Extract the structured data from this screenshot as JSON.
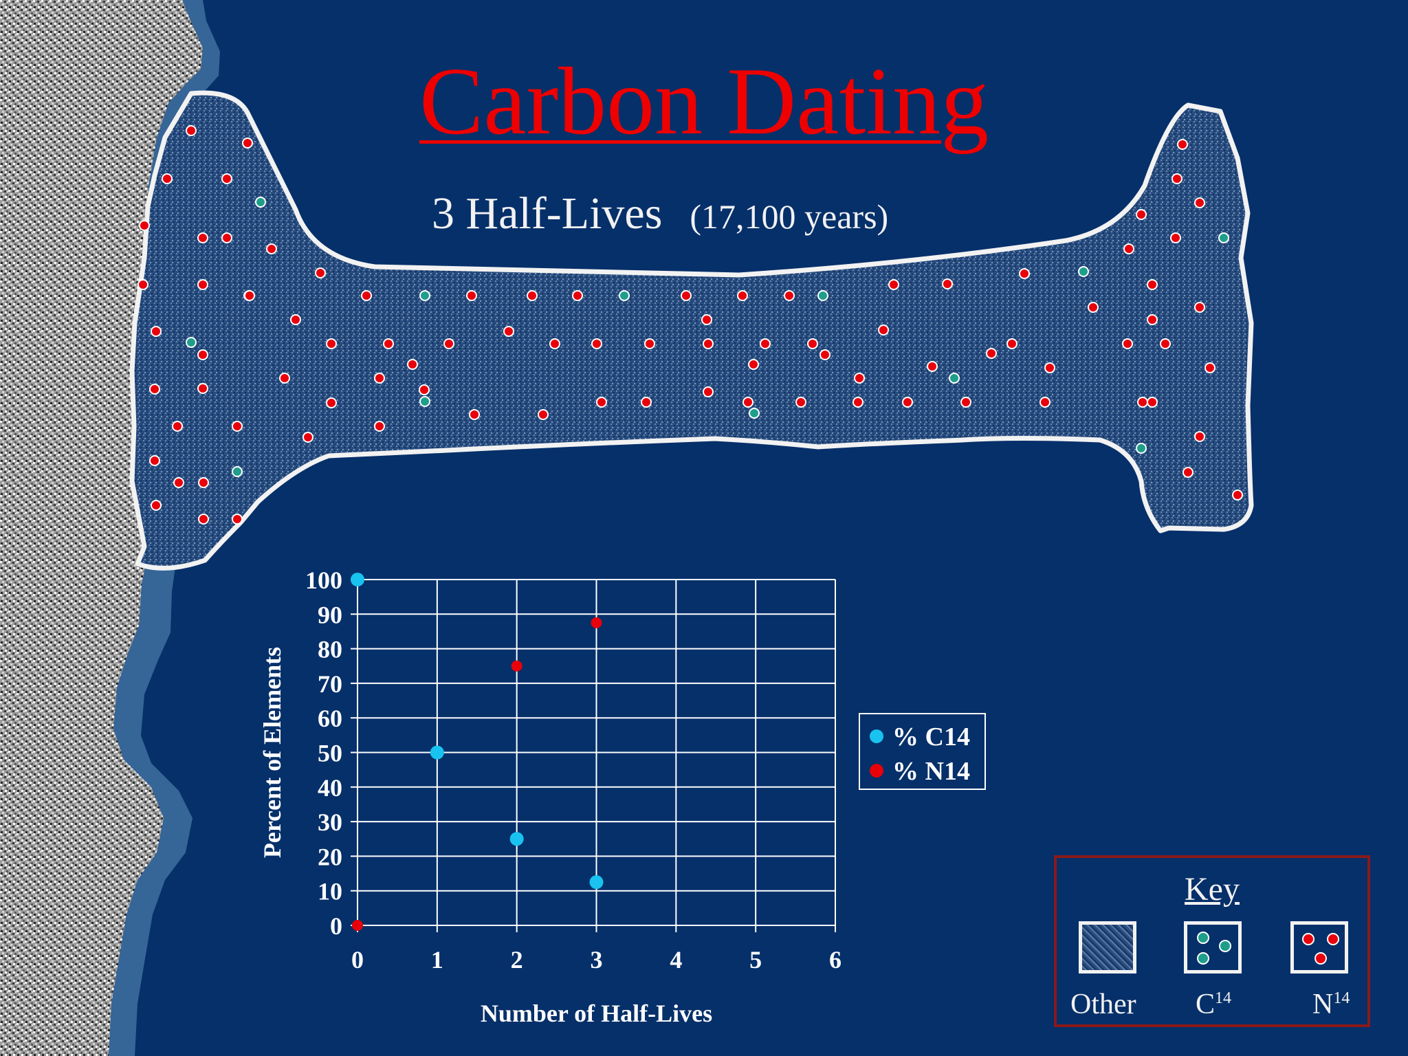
{
  "slide": {
    "title": "Carbon Dating",
    "subtitle_main": "3 Half-Lives",
    "subtitle_years": "(17,100 years)"
  },
  "colors": {
    "background": "#06306a",
    "title": "#ee0000",
    "c14": "#19c2ef",
    "n14": "#e8000b",
    "c14_in_bone": "#1f9e8c",
    "bone_outline": "#f2f2f2",
    "key_border": "#8a1a1a"
  },
  "key": {
    "title": "Key",
    "items": [
      {
        "label": "Other",
        "sup": "",
        "icon": "speckle-swatch-icon"
      },
      {
        "label": "C",
        "sup": "14",
        "icon": "teal-dots-swatch-icon"
      },
      {
        "label": "N",
        "sup": "14",
        "icon": "red-dots-swatch-icon"
      }
    ]
  },
  "chart_data": {
    "type": "scatter",
    "xlabel": "Number of Half-Lives",
    "ylabel": "Percent of Elements",
    "xlim": [
      0,
      6
    ],
    "ylim": [
      0,
      100
    ],
    "x_ticks": [
      0,
      1,
      2,
      3,
      4,
      5,
      6
    ],
    "y_ticks": [
      0,
      10,
      20,
      30,
      40,
      50,
      60,
      70,
      80,
      90,
      100
    ],
    "grid": true,
    "legend_position": "right",
    "series": [
      {
        "name": "% C14",
        "color": "#19c2ef",
        "points": [
          [
            0,
            100
          ],
          [
            1,
            50
          ],
          [
            2,
            25
          ],
          [
            3,
            12.5
          ]
        ]
      },
      {
        "name": "% N14",
        "color": "#e8000b",
        "points": [
          [
            0,
            0
          ],
          [
            1,
            50
          ],
          [
            2,
            75
          ],
          [
            3,
            87.5
          ]
        ]
      }
    ]
  }
}
